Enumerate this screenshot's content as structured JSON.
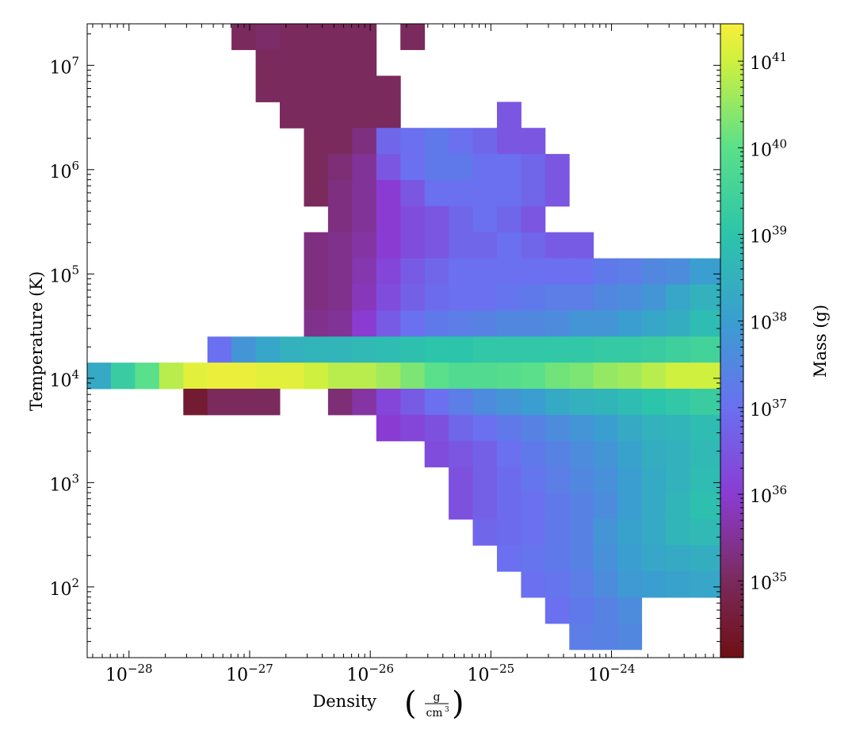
{
  "chart_data": {
    "type": "heatmap",
    "xlabel": "Density",
    "xunit_num": "g",
    "xunit_den": "cm",
    "xunit_den_exp": "3",
    "ylabel": "Temperature  (K)",
    "colorbar_label": "Mass  (g)",
    "x_scale": "log",
    "y_scale": "log",
    "color_scale": "log",
    "xlim": [
      4.5e-29,
      8e-24
    ],
    "ylim": [
      21,
      25000000.0
    ],
    "clim": [
      1.3e+34,
      2.7e+41
    ],
    "x_ticks": [
      {
        "base": "10",
        "exp": "−28",
        "value": -28
      },
      {
        "base": "10",
        "exp": "−27",
        "value": -27
      },
      {
        "base": "10",
        "exp": "−26",
        "value": -26
      },
      {
        "base": "10",
        "exp": "−25",
        "value": -25
      },
      {
        "base": "10",
        "exp": "−24",
        "value": -24
      }
    ],
    "y_ticks": [
      {
        "base": "10",
        "exp": "2",
        "value": 2
      },
      {
        "base": "10",
        "exp": "3",
        "value": 3
      },
      {
        "base": "10",
        "exp": "4",
        "value": 4
      },
      {
        "base": "10",
        "exp": "5",
        "value": 5
      },
      {
        "base": "10",
        "exp": "6",
        "value": 6
      },
      {
        "base": "10",
        "exp": "7",
        "value": 7
      }
    ],
    "colorbar_ticks": [
      {
        "base": "10",
        "exp": "35",
        "value": 35
      },
      {
        "base": "10",
        "exp": "36",
        "value": 36
      },
      {
        "base": "10",
        "exp": "37",
        "value": 37
      },
      {
        "base": "10",
        "exp": "38",
        "value": 38
      },
      {
        "base": "10",
        "exp": "39",
        "value": 39
      },
      {
        "base": "10",
        "exp": "40",
        "value": 40
      },
      {
        "base": "10",
        "exp": "41",
        "value": 41
      }
    ],
    "colormap": [
      {
        "v": 34.1,
        "c": "#6f0f14"
      },
      {
        "v": 35,
        "c": "#7a2a5c"
      },
      {
        "v": 36,
        "c": "#8a3cd2"
      },
      {
        "v": 37,
        "c": "#6a70f0"
      },
      {
        "v": 38,
        "c": "#3a9ed0"
      },
      {
        "v": 39,
        "c": "#2cc4aa"
      },
      {
        "v": 40,
        "c": "#5ae08a"
      },
      {
        "v": 41,
        "c": "#cff03e"
      },
      {
        "v": 41.43,
        "c": "#f7ef3a"
      }
    ],
    "x_bins": {
      "log10_start": -28.35,
      "log10_width": 0.2
    },
    "y_bins": {
      "log10_start_top": 7.4,
      "log10_height": 0.25
    },
    "log10_mass_grid": [
      [
        null,
        null,
        null,
        null,
        null,
        null,
        35,
        35.1,
        35,
        35,
        35,
        35,
        null,
        35,
        null,
        null,
        null,
        null,
        null,
        null,
        null,
        null,
        null,
        null,
        null,
        null,
        null
      ],
      [
        null,
        null,
        null,
        null,
        null,
        null,
        null,
        35,
        35,
        35,
        35,
        35,
        null,
        null,
        null,
        null,
        null,
        null,
        null,
        null,
        null,
        null,
        null,
        null,
        null,
        null,
        null
      ],
      [
        null,
        null,
        null,
        null,
        null,
        null,
        null,
        35,
        35,
        35,
        35,
        35,
        35,
        null,
        null,
        null,
        null,
        null,
        null,
        null,
        null,
        null,
        null,
        null,
        null,
        null,
        null
      ],
      [
        null,
        null,
        null,
        null,
        null,
        null,
        null,
        null,
        35,
        35,
        35,
        35,
        35,
        null,
        null,
        null,
        null,
        36.5,
        null,
        null,
        null,
        null,
        null,
        null,
        null,
        null,
        null
      ],
      [
        null,
        null,
        null,
        null,
        null,
        null,
        null,
        null,
        null,
        35,
        35,
        35.3,
        36.8,
        37,
        37.2,
        37,
        36.8,
        36.5,
        36.5,
        null,
        null,
        null,
        null,
        null,
        null,
        null,
        null
      ],
      [
        null,
        null,
        null,
        null,
        null,
        null,
        null,
        null,
        null,
        35,
        35.2,
        35.5,
        36.5,
        37,
        37.2,
        37.2,
        37,
        37,
        36.8,
        36.5,
        null,
        null,
        null,
        null,
        null,
        null,
        null
      ],
      [
        null,
        null,
        null,
        null,
        null,
        null,
        null,
        null,
        null,
        35,
        35.3,
        35.5,
        36,
        36.5,
        37,
        37,
        37,
        37,
        36.8,
        36.5,
        null,
        null,
        null,
        null,
        null,
        null,
        null
      ],
      [
        null,
        null,
        null,
        null,
        null,
        null,
        null,
        null,
        null,
        null,
        35.3,
        35.5,
        36,
        36.3,
        36.5,
        36.8,
        37,
        36.8,
        36.5,
        null,
        null,
        null,
        null,
        null,
        null,
        null,
        null
      ],
      [
        null,
        null,
        null,
        null,
        null,
        null,
        null,
        null,
        null,
        35.3,
        35.4,
        35.6,
        36,
        36.3,
        36.5,
        36.8,
        36.8,
        37,
        36.8,
        36.6,
        36.6,
        null,
        null,
        null,
        null,
        null,
        null
      ],
      [
        null,
        null,
        null,
        null,
        null,
        null,
        null,
        null,
        null,
        35.3,
        35.4,
        35.7,
        36.2,
        36.6,
        36.8,
        37,
        37,
        37,
        37,
        37,
        37,
        37.2,
        37.3,
        37.5,
        37.6,
        38,
        38
      ],
      [
        null,
        null,
        null,
        null,
        null,
        null,
        null,
        null,
        null,
        35.3,
        35.4,
        35.8,
        36.3,
        36.7,
        36.9,
        37,
        37,
        37.1,
        37.2,
        37.3,
        37.3,
        37.5,
        37.6,
        37.8,
        38.2,
        38.5,
        38.5
      ],
      [
        null,
        null,
        null,
        null,
        null,
        null,
        null,
        null,
        null,
        35.4,
        35.5,
        36,
        36.6,
        37,
        37.2,
        37.3,
        37.4,
        37.5,
        37.5,
        37.6,
        37.8,
        37.8,
        38,
        38.2,
        38.4,
        38.8,
        38.8
      ],
      [
        null,
        null,
        null,
        null,
        null,
        37,
        37.8,
        38.2,
        38.5,
        38.6,
        38.6,
        38.7,
        38.8,
        38.9,
        39,
        39,
        39.1,
        39.1,
        39.1,
        39.1,
        39.1,
        39.2,
        39.2,
        39.3,
        39.4,
        39.5,
        39.5
      ],
      [
        38.3,
        39.3,
        40,
        40.8,
        41.2,
        41.3,
        41.3,
        41.2,
        41.2,
        41,
        40.8,
        40.8,
        40.6,
        40.3,
        40,
        39.8,
        39.8,
        39.9,
        40,
        40.2,
        40.3,
        40.5,
        40.6,
        40.8,
        41,
        41,
        41
      ],
      [
        null,
        null,
        null,
        null,
        34.5,
        35,
        35,
        35,
        null,
        null,
        35.2,
        35.6,
        36.2,
        36.6,
        37,
        37.3,
        37.6,
        37.8,
        38,
        38.3,
        38.5,
        38.6,
        38.8,
        39,
        39.1,
        39.3,
        39.3
      ],
      [
        null,
        null,
        null,
        null,
        null,
        null,
        null,
        null,
        null,
        null,
        null,
        null,
        36,
        36.2,
        36.4,
        36.8,
        37,
        37.2,
        37.4,
        37.6,
        37.8,
        38,
        38.3,
        38.5,
        38.6,
        38.8,
        38.8
      ],
      [
        null,
        null,
        null,
        null,
        null,
        null,
        null,
        null,
        null,
        null,
        null,
        null,
        null,
        null,
        36.3,
        36.5,
        36.7,
        37,
        37.2,
        37.4,
        37.6,
        37.8,
        38.1,
        38.4,
        38.5,
        38.7,
        38.7
      ],
      [
        null,
        null,
        null,
        null,
        null,
        null,
        null,
        null,
        null,
        null,
        null,
        null,
        null,
        null,
        null,
        36.4,
        36.7,
        36.9,
        37.1,
        37.3,
        37.5,
        37.7,
        38,
        38.3,
        38.5,
        38.8,
        38.8
      ],
      [
        null,
        null,
        null,
        null,
        null,
        null,
        null,
        null,
        null,
        null,
        null,
        null,
        null,
        null,
        null,
        36.4,
        36.7,
        36.9,
        37,
        37.2,
        37.4,
        37.6,
        38,
        38.3,
        38.6,
        38.9,
        38.9
      ],
      [
        null,
        null,
        null,
        null,
        null,
        null,
        null,
        null,
        null,
        null,
        null,
        null,
        null,
        null,
        null,
        null,
        36.8,
        36.9,
        37,
        37.2,
        37.4,
        37.8,
        38.1,
        38.3,
        38.6,
        38.7,
        38.7
      ],
      [
        null,
        null,
        null,
        null,
        null,
        null,
        null,
        null,
        null,
        null,
        null,
        null,
        null,
        null,
        null,
        null,
        null,
        37,
        37.1,
        37.2,
        37.4,
        37.7,
        38,
        38.2,
        38.3,
        38.4,
        38.4
      ],
      [
        null,
        null,
        null,
        null,
        null,
        null,
        null,
        null,
        null,
        null,
        null,
        null,
        null,
        null,
        null,
        null,
        null,
        null,
        37,
        37.1,
        37.3,
        37.6,
        37.9,
        38,
        38.1,
        38.2,
        38.2
      ],
      [
        null,
        null,
        null,
        null,
        null,
        null,
        null,
        null,
        null,
        null,
        null,
        null,
        null,
        null,
        null,
        null,
        null,
        null,
        null,
        37,
        37.2,
        37.4,
        37.6,
        null,
        null,
        null,
        null
      ],
      [
        null,
        null,
        null,
        null,
        null,
        null,
        null,
        null,
        null,
        null,
        null,
        null,
        null,
        null,
        null,
        null,
        null,
        null,
        null,
        null,
        37.3,
        37.4,
        37.5,
        null,
        null,
        null,
        null
      ]
    ]
  }
}
